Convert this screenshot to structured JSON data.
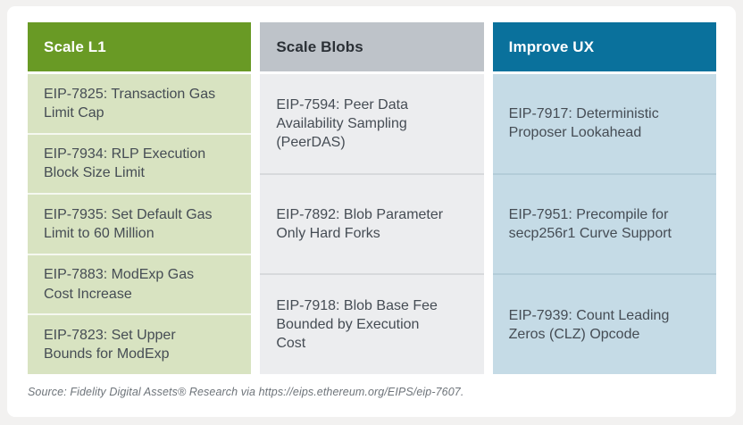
{
  "chart_data": {
    "type": "table",
    "title": "",
    "columns": [
      {
        "id": "scale-l1",
        "header": "Scale L1",
        "header_bg": "#699a25",
        "header_text_color": "#ffffff",
        "body_bg": "#d8e3c1",
        "items": [
          "EIP-7825: Transaction Gas\nLimit Cap",
          "EIP-7934: RLP Execution\nBlock Size Limit",
          "EIP-7935: Set Default Gas\nLimit to 60 Million",
          "EIP-7883: ModExp Gas\nCost Increase",
          "EIP-7823: Set Upper\nBounds for ModExp"
        ]
      },
      {
        "id": "scale-blobs",
        "header": "Scale Blobs",
        "header_bg": "#bec3c9",
        "header_text_color": "#2b3036",
        "body_bg": "#ecedef",
        "items": [
          "EIP-7594: Peer Data\nAvailability Sampling\n(PeerDAS)",
          "EIP-7892: Blob Parameter\nOnly Hard Forks",
          "EIP-7918: Blob Base Fee\nBounded by Execution\nCost"
        ]
      },
      {
        "id": "improve-ux",
        "header": "Improve UX",
        "header_bg": "#0a719c",
        "header_text_color": "#ffffff",
        "body_bg": "#c5dbe6",
        "items": [
          "EIP-7917: Deterministic\nProposer Lookahead",
          "EIP-7951: Precompile for\nsecp256r1 Curve Support",
          "EIP-7939: Count Leading\nZeros (CLZ) Opcode"
        ]
      }
    ],
    "source": "Source: Fidelity Digital Assets® Research via https://eips.ethereum.org/EIPS/eip-7607.",
    "layout": {
      "legend": "none",
      "grid": "off"
    }
  },
  "theme": {
    "page_bg": "#f2f1f0",
    "card_bg": "#ffffff",
    "cell_text": "#454c54",
    "source_text": "#6e747a"
  }
}
